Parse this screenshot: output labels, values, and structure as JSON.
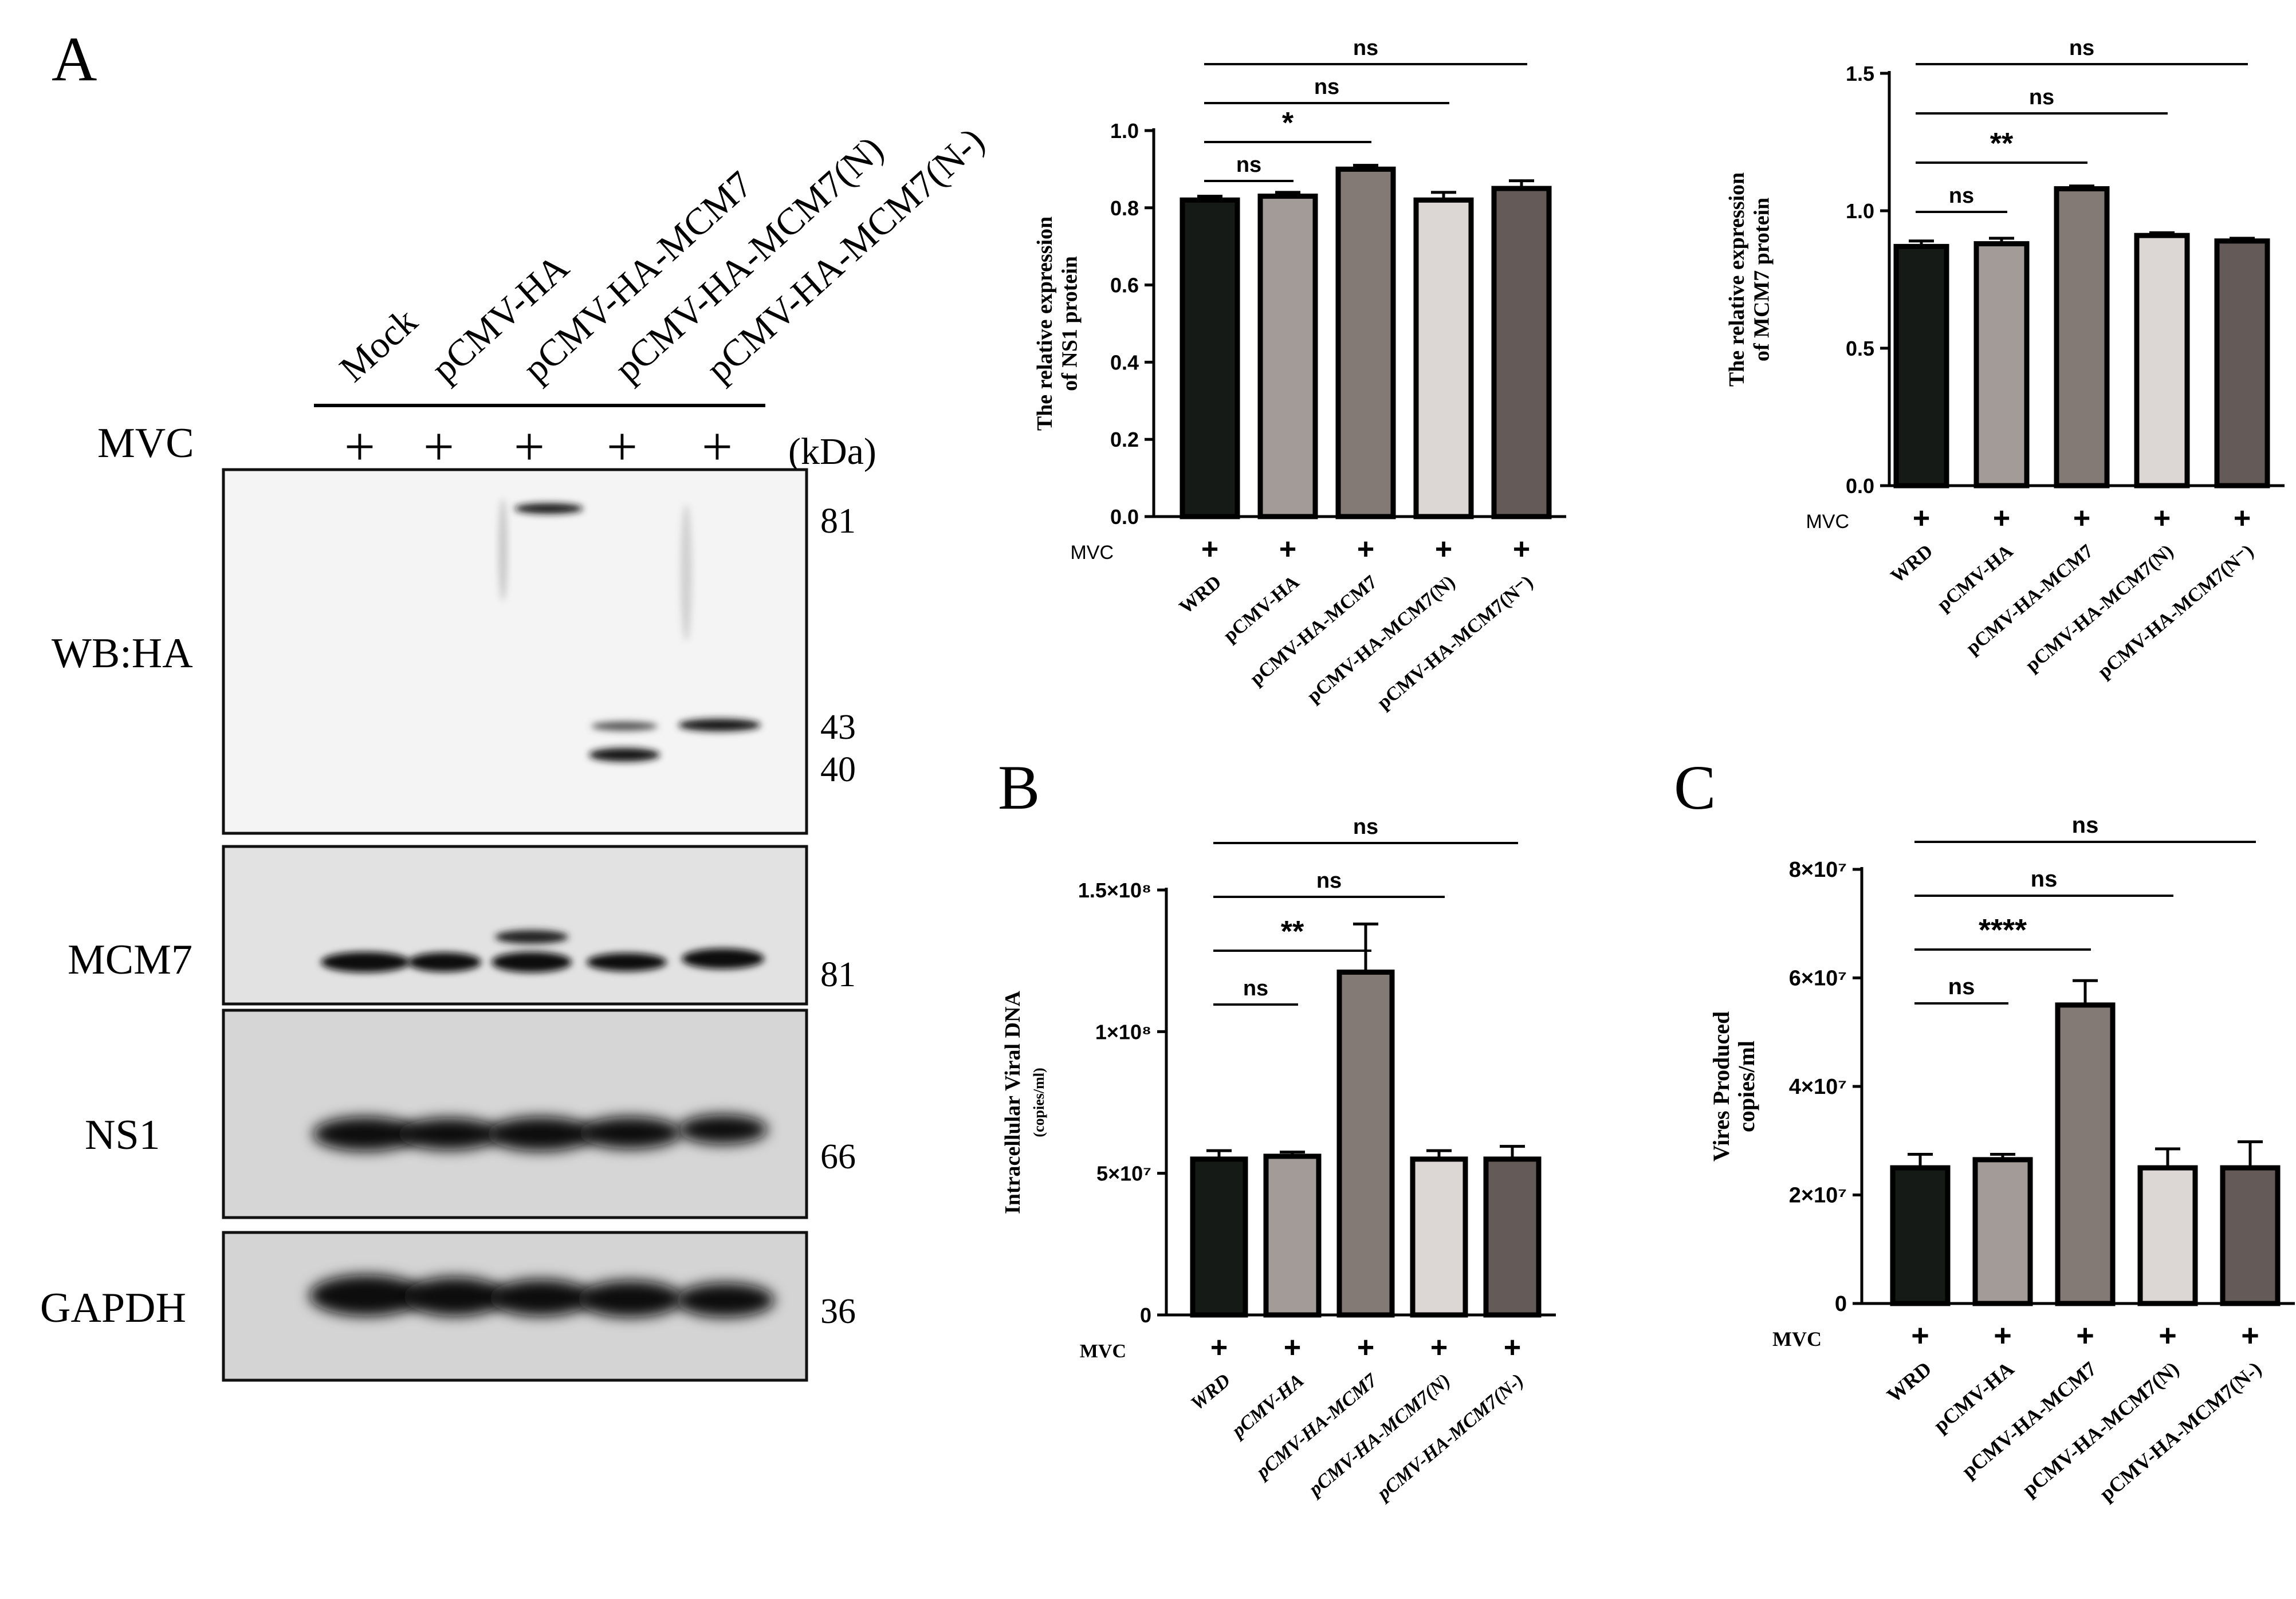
{
  "panel_labels": [
    "A",
    "B",
    "C"
  ],
  "blot": {
    "lanes": [
      "Mock",
      "pCMV-HA",
      "pCMV-HA-MCM7",
      "pCMV-HA-MCM7(N)",
      "pCMV-HA-MCM7(N-)"
    ],
    "treatment_label": "MVC",
    "treatment_marks": [
      "+",
      "+",
      "+",
      "+",
      "+"
    ],
    "unit_label": "(kDa)",
    "panels": [
      {
        "label": "WB:HA",
        "markers": [
          "81",
          "43",
          "40"
        ]
      },
      {
        "label": "MCM7",
        "markers": [
          "81"
        ]
      },
      {
        "label": "NS1",
        "markers": [
          "66"
        ]
      },
      {
        "label": "GAPDH",
        "markers": [
          "36"
        ]
      }
    ]
  },
  "colors": {
    "bar_fills": [
      "#161a16",
      "#a39b98",
      "#837a75",
      "#dcd7d4",
      "#645b58"
    ],
    "bar_stroke": "#000000",
    "blot_background": "#f2f2f2",
    "band": "#101010"
  },
  "chart_data": [
    {
      "type": "bar",
      "title": "",
      "xlabel": "",
      "ylabel": "The relative expression of NS1 protein",
      "treatment_label": "MVC",
      "treatment_marks": [
        "+",
        "+",
        "+",
        "+",
        "+"
      ],
      "categories": [
        "WRD",
        "pCMV-HA",
        "pCMV-HA-MCM7",
        "pCMV-HA-MCM7(N)",
        "pCMV-HA-MCM7(N⁻)"
      ],
      "values": [
        0.82,
        0.83,
        0.9,
        0.82,
        0.85
      ],
      "errors": [
        0.01,
        0.01,
        0.01,
        0.02,
        0.02
      ],
      "ylim": [
        0,
        1.0
      ],
      "yticks": [
        "0.0",
        "0.2",
        "0.4",
        "0.6",
        "0.8",
        "1.0"
      ],
      "significance": [
        {
          "from": 0,
          "to": 1,
          "label": "ns"
        },
        {
          "from": 0,
          "to": 2,
          "label": "*"
        },
        {
          "from": 0,
          "to": 3,
          "label": "ns"
        },
        {
          "from": 0,
          "to": 4,
          "label": "ns"
        }
      ]
    },
    {
      "type": "bar",
      "title": "",
      "xlabel": "",
      "ylabel": "The relative expression of MCM7 protein",
      "treatment_label": "MVC",
      "treatment_marks": [
        "+",
        "+",
        "+",
        "+",
        "+"
      ],
      "categories": [
        "WRD",
        "pCMV-HA",
        "pCMV-HA-MCM7",
        "pCMV-HA-MCM7(N)",
        "pCMV-HA-MCM7(N⁻)"
      ],
      "values": [
        0.87,
        0.88,
        1.08,
        0.91,
        0.89
      ],
      "errors": [
        0.02,
        0.02,
        0.01,
        0.01,
        0.01
      ],
      "ylim": [
        0,
        1.5
      ],
      "yticks": [
        "0.0",
        "0.5",
        "1.0",
        "1.5"
      ],
      "significance": [
        {
          "from": 0,
          "to": 1,
          "label": "ns"
        },
        {
          "from": 0,
          "to": 2,
          "label": "**"
        },
        {
          "from": 0,
          "to": 3,
          "label": "ns"
        },
        {
          "from": 0,
          "to": 4,
          "label": "ns"
        }
      ]
    },
    {
      "type": "bar",
      "title": "",
      "xlabel": "",
      "ylabel": "Intracellular Viral DNA",
      "ylabel_sub": "(copies/ml)",
      "treatment_label": "MVC",
      "treatment_marks": [
        "+",
        "+",
        "+",
        "+",
        "+"
      ],
      "categories": [
        "WRD",
        "pCMV-HA",
        "pCMV-HA-MCM7",
        "pCMV-HA-MCM7(N)",
        "pCMV-HA-MCM7(N-)"
      ],
      "values": [
        55000000,
        56000000,
        121000000,
        55000000,
        55000000
      ],
      "errors": [
        3000000,
        1500000,
        17000000,
        3000000,
        4500000
      ],
      "ylim": [
        0,
        150000000
      ],
      "yticks": [
        "0",
        "5×10⁷",
        "1×10⁸",
        "1.5×10⁸"
      ],
      "significance": [
        {
          "from": 0,
          "to": 1,
          "label": "ns"
        },
        {
          "from": 0,
          "to": 2,
          "label": "**"
        },
        {
          "from": 0,
          "to": 3,
          "label": "ns"
        },
        {
          "from": 0,
          "to": 4,
          "label": "ns"
        }
      ]
    },
    {
      "type": "bar",
      "title": "",
      "xlabel": "",
      "ylabel": "Vires Produced",
      "ylabel_sub": "copies/ml",
      "treatment_label": "MVC",
      "treatment_marks": [
        "+",
        "+",
        "+",
        "+",
        "+"
      ],
      "categories": [
        "WRD",
        "pCMV-HA",
        "pCMV-HA-MCM7",
        "pCMV-HA-MCM7(N)",
        "pCMV-HA-MCM7(N-)"
      ],
      "values": [
        25000000,
        26500000,
        55000000,
        25000000,
        25000000
      ],
      "errors": [
        2500000,
        1000000,
        4500000,
        3500000,
        4800000
      ],
      "ylim": [
        0,
        80000000
      ],
      "yticks": [
        "0",
        "2×10⁷",
        "4×10⁷",
        "6×10⁷",
        "8×10⁷"
      ],
      "significance": [
        {
          "from": 0,
          "to": 1,
          "label": "ns"
        },
        {
          "from": 0,
          "to": 2,
          "label": "****"
        },
        {
          "from": 0,
          "to": 3,
          "label": "ns"
        },
        {
          "from": 0,
          "to": 4,
          "label": "ns"
        }
      ]
    }
  ]
}
